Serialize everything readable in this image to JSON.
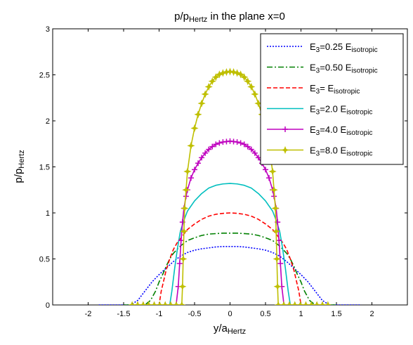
{
  "chart_data": {
    "type": "line",
    "title": {
      "base": "p/p",
      "sub": "Hertz",
      "rest": " in the plane x=0"
    },
    "xlabel": {
      "base": "y/a",
      "sub": "Hertz"
    },
    "ylabel": {
      "base": "p/p",
      "sub": "Hertz"
    },
    "xlim": [
      -2.5,
      2.5
    ],
    "ylim": [
      0,
      3
    ],
    "xticks": [
      -2,
      -1.5,
      -1,
      -0.5,
      0,
      0.5,
      1,
      1.5,
      2
    ],
    "xtick_labels": [
      "-2",
      "-1.5",
      "-1",
      "-0.5",
      "0",
      "0.5",
      "1",
      "1.5",
      "2"
    ],
    "yticks": [
      0,
      0.5,
      1,
      1.5,
      2,
      2.5,
      3
    ],
    "ytick_labels": [
      "0",
      "0.5",
      "1",
      "1.5",
      "2",
      "2.5",
      "3"
    ],
    "grid": false,
    "legend_position": "top-right",
    "series": [
      {
        "legend": {
          "base": "E",
          "sub1": "3",
          "mid": "=0.25 E",
          "sub2": "isotropic"
        },
        "color": "#0000ff",
        "dash": "2,2",
        "marker": "none",
        "x": [
          -1.85,
          -1.4,
          -1.3,
          -1.2,
          -1.1,
          -1.0,
          -0.9,
          -0.8,
          -0.7,
          -0.6,
          -0.5,
          -0.4,
          -0.3,
          -0.2,
          -0.1,
          0,
          0.1,
          0.2,
          0.3,
          0.4,
          0.5,
          0.6,
          0.7,
          0.8,
          0.9,
          1.0,
          1.1,
          1.2,
          1.3,
          1.4,
          1.85
        ],
        "y": [
          0,
          0,
          0.05,
          0.15,
          0.25,
          0.33,
          0.4,
          0.47,
          0.53,
          0.57,
          0.595,
          0.61,
          0.62,
          0.63,
          0.635,
          0.635,
          0.635,
          0.63,
          0.62,
          0.61,
          0.595,
          0.57,
          0.53,
          0.47,
          0.4,
          0.33,
          0.25,
          0.15,
          0.05,
          0,
          0
        ]
      },
      {
        "legend": {
          "base": "E",
          "sub1": "3",
          "mid": "=0.50 E",
          "sub2": "isotropic"
        },
        "color": "#008000",
        "dash": "8,3,2,3",
        "marker": "none",
        "x": [
          -1.5,
          -1.2,
          -1.12,
          -1.05,
          -1.0,
          -0.95,
          -0.9,
          -0.85,
          -0.8,
          -0.7,
          -0.6,
          -0.5,
          -0.4,
          -0.3,
          -0.2,
          -0.1,
          0,
          0.1,
          0.2,
          0.3,
          0.4,
          0.5,
          0.6,
          0.7,
          0.8,
          0.85,
          0.9,
          0.95,
          1.0,
          1.05,
          1.12,
          1.2,
          1.5
        ],
        "y": [
          0,
          0,
          0.05,
          0.15,
          0.25,
          0.33,
          0.42,
          0.5,
          0.56,
          0.64,
          0.7,
          0.73,
          0.755,
          0.77,
          0.775,
          0.78,
          0.78,
          0.78,
          0.775,
          0.77,
          0.755,
          0.73,
          0.7,
          0.64,
          0.56,
          0.5,
          0.42,
          0.33,
          0.25,
          0.15,
          0.05,
          0,
          0
        ]
      },
      {
        "legend": {
          "base": "E",
          "sub1": "3",
          "mid": "= E",
          "sub2": "isotropic"
        },
        "color": "#ff0000",
        "dash": "6,3",
        "marker": "none",
        "x": [
          -1.2,
          -1.0,
          -0.97,
          -0.93,
          -0.9,
          -0.85,
          -0.8,
          -0.75,
          -0.7,
          -0.6,
          -0.5,
          -0.4,
          -0.3,
          -0.2,
          -0.1,
          0,
          0.1,
          0.2,
          0.3,
          0.4,
          0.5,
          0.6,
          0.7,
          0.75,
          0.8,
          0.85,
          0.9,
          0.93,
          0.97,
          1.0,
          1.2
        ],
        "y": [
          0,
          0,
          0.15,
          0.28,
          0.38,
          0.5,
          0.6,
          0.67,
          0.72,
          0.82,
          0.88,
          0.93,
          0.965,
          0.985,
          0.995,
          1.0,
          0.995,
          0.985,
          0.965,
          0.93,
          0.88,
          0.82,
          0.72,
          0.67,
          0.6,
          0.5,
          0.38,
          0.28,
          0.15,
          0,
          0
        ]
      },
      {
        "legend": {
          "base": "E",
          "sub1": "3",
          "mid": "=2.0 E",
          "sub2": "isotropic"
        },
        "color": "#00bfbf",
        "dash": "",
        "marker": "none",
        "x": [
          -1.0,
          -0.85,
          -0.82,
          -0.78,
          -0.74,
          -0.7,
          -0.65,
          -0.6,
          -0.5,
          -0.4,
          -0.3,
          -0.2,
          -0.1,
          0,
          0.1,
          0.2,
          0.3,
          0.4,
          0.5,
          0.6,
          0.65,
          0.7,
          0.74,
          0.78,
          0.82,
          0.85,
          1.0
        ],
        "y": [
          0,
          0,
          0.15,
          0.4,
          0.62,
          0.8,
          0.92,
          1.02,
          1.13,
          1.21,
          1.27,
          1.3,
          1.315,
          1.32,
          1.315,
          1.3,
          1.27,
          1.21,
          1.13,
          1.02,
          0.92,
          0.8,
          0.62,
          0.4,
          0.15,
          0,
          0
        ]
      },
      {
        "legend": {
          "base": "E",
          "sub1": "3",
          "mid": "=4.0 E",
          "sub2": "isotropic"
        },
        "color": "#bf00bf",
        "dash": "",
        "marker": "plus",
        "x": [
          -1.3,
          -0.76,
          -0.73,
          -0.71,
          -0.69,
          -0.67,
          -0.65,
          -0.62,
          -0.6,
          -0.55,
          -0.5,
          -0.45,
          -0.4,
          -0.35,
          -0.3,
          -0.25,
          -0.2,
          -0.15,
          -0.1,
          -0.05,
          0,
          0.05,
          0.1,
          0.15,
          0.2,
          0.25,
          0.3,
          0.35,
          0.4,
          0.45,
          0.5,
          0.55,
          0.6,
          0.62,
          0.65,
          0.67,
          0.69,
          0.71,
          0.73,
          0.76,
          1.3
        ],
        "y": [
          0,
          0,
          0.2,
          0.45,
          0.7,
          0.9,
          1.05,
          1.18,
          1.25,
          1.38,
          1.47,
          1.54,
          1.6,
          1.65,
          1.69,
          1.72,
          1.745,
          1.76,
          1.77,
          1.775,
          1.78,
          1.775,
          1.77,
          1.76,
          1.745,
          1.72,
          1.69,
          1.65,
          1.6,
          1.54,
          1.47,
          1.38,
          1.25,
          1.18,
          1.05,
          0.9,
          0.7,
          0.45,
          0.2,
          0,
          0
        ]
      },
      {
        "legend": {
          "base": "E",
          "sub1": "3",
          "mid": "=8.0 E",
          "sub2": "isotropic"
        },
        "color": "#bfbf00",
        "dash": "",
        "marker": "star",
        "x": [
          -1.38,
          -0.68,
          -0.67,
          -0.66,
          -0.65,
          -0.64,
          -0.62,
          -0.6,
          -0.55,
          -0.5,
          -0.45,
          -0.4,
          -0.35,
          -0.3,
          -0.25,
          -0.2,
          -0.15,
          -0.1,
          -0.05,
          0,
          0.05,
          0.1,
          0.15,
          0.2,
          0.25,
          0.3,
          0.35,
          0.4,
          0.45,
          0.5,
          0.55,
          0.6,
          0.62,
          0.64,
          0.65,
          0.66,
          0.67,
          0.68,
          1.38
        ],
        "y": [
          0,
          0,
          0.2,
          0.5,
          0.8,
          1.05,
          1.25,
          1.45,
          1.73,
          1.92,
          2.07,
          2.19,
          2.29,
          2.37,
          2.43,
          2.475,
          2.505,
          2.52,
          2.53,
          2.535,
          2.53,
          2.52,
          2.505,
          2.475,
          2.43,
          2.37,
          2.29,
          2.19,
          2.07,
          1.92,
          1.73,
          1.45,
          1.25,
          1.05,
          0.8,
          0.5,
          0.2,
          0,
          0
        ]
      }
    ]
  }
}
